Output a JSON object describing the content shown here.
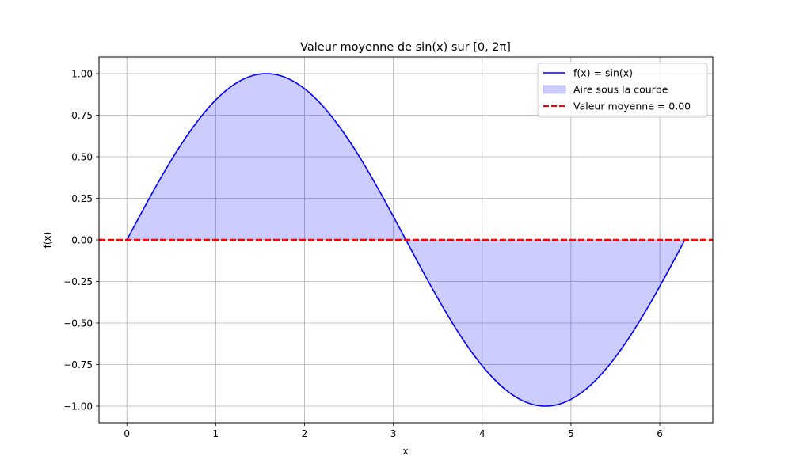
{
  "chart_data": {
    "type": "line",
    "title": "Valeur moyenne de sin(x) sur [0, 2π]",
    "xlabel": "x",
    "ylabel": "f(x)",
    "xlim": [
      -0.314,
      6.597
    ],
    "ylim": [
      -1.1,
      1.1
    ],
    "xticks": [
      0,
      1,
      2,
      3,
      4,
      5,
      6
    ],
    "xtick_labels": [
      "0",
      "1",
      "2",
      "3",
      "4",
      "5",
      "6"
    ],
    "yticks": [
      1.0,
      0.75,
      0.5,
      0.25,
      0.0,
      -0.25,
      -0.5,
      -0.75,
      -1.0
    ],
    "ytick_labels": [
      "1.00",
      "0.75",
      "0.50",
      "0.25",
      "0.00",
      "−0.25",
      "−0.50",
      "−0.75",
      "−1.00"
    ],
    "grid": true,
    "legend_position": "top-right",
    "function": "sin(x)",
    "x_range": [
      0,
      6.2832
    ],
    "series": [
      {
        "name": "f(x) = sin(x)",
        "kind": "line",
        "color": "#0000ff",
        "x": [
          0,
          0.5236,
          1.0472,
          1.5708,
          2.0944,
          2.618,
          3.1416,
          3.6652,
          4.1888,
          4.7124,
          5.236,
          5.7596,
          6.2832
        ],
        "y": [
          0,
          0.5,
          0.866,
          1.0,
          0.866,
          0.5,
          0,
          -0.5,
          -0.866,
          -1.0,
          -0.866,
          -0.5,
          0
        ]
      },
      {
        "name": "Aire sous la courbe",
        "kind": "fill",
        "color": "#0000ff",
        "alpha": 0.2
      },
      {
        "name": "Valeur moyenne = 0.00",
        "kind": "hline",
        "color": "#ff0000",
        "y": 0.0
      }
    ]
  }
}
